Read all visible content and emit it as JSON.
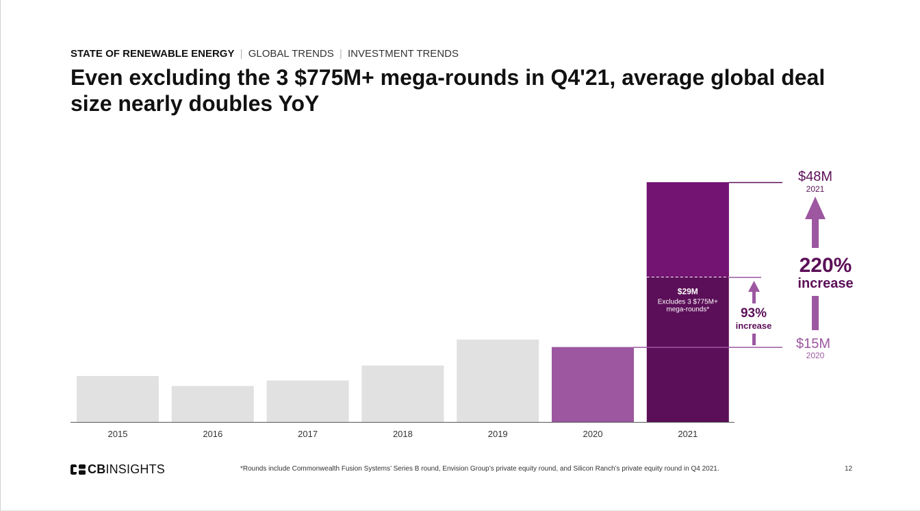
{
  "header": {
    "section": "STATE OF RENEWABLE ENERGY",
    "sub1": "GLOBAL TRENDS",
    "sub2": "INVESTMENT TRENDS",
    "separator": "|"
  },
  "title": "Even excluding the 3 $775M+ mega-rounds in Q4'21, average global deal size nearly doubles YoY",
  "chart_data": {
    "type": "bar",
    "categories": [
      "2015",
      "2016",
      "2017",
      "2018",
      "2019",
      "2020",
      "2021"
    ],
    "values": [
      9.2,
      7.2,
      8.3,
      11.3,
      16.5,
      15,
      48
    ],
    "ylim": [
      0,
      48
    ],
    "colors": [
      "#e1e1e1",
      "#e1e1e1",
      "#e1e1e1",
      "#e1e1e1",
      "#e1e1e1",
      "#9c57a0",
      "#5b0f58"
    ],
    "excluding_value": 29,
    "excluding_color": "#731473",
    "grid": false,
    "annotations": {
      "bar_label_value": "$29M",
      "bar_label_line1": "Excludes 3 $775M+",
      "bar_label_line2": "mega-rounds*",
      "inner_pct": "93%",
      "inner_word": "increase",
      "top_value": "$48M",
      "top_year": "2021",
      "bottom_value": "$15M",
      "bottom_year": "2020",
      "big_pct": "220%",
      "big_word": "increase"
    },
    "accent": "#9c57a0",
    "dark": "#5b0f58"
  },
  "footer": {
    "logo_cb": "CB",
    "logo_insights": "INSIGHTS",
    "footnote": "*Rounds include Commonwealth Fusion Systems’ Series B round, Envision Group’s private equity round, and Silicon Ranch’s private equity round in Q4 2021.",
    "page": "12"
  }
}
